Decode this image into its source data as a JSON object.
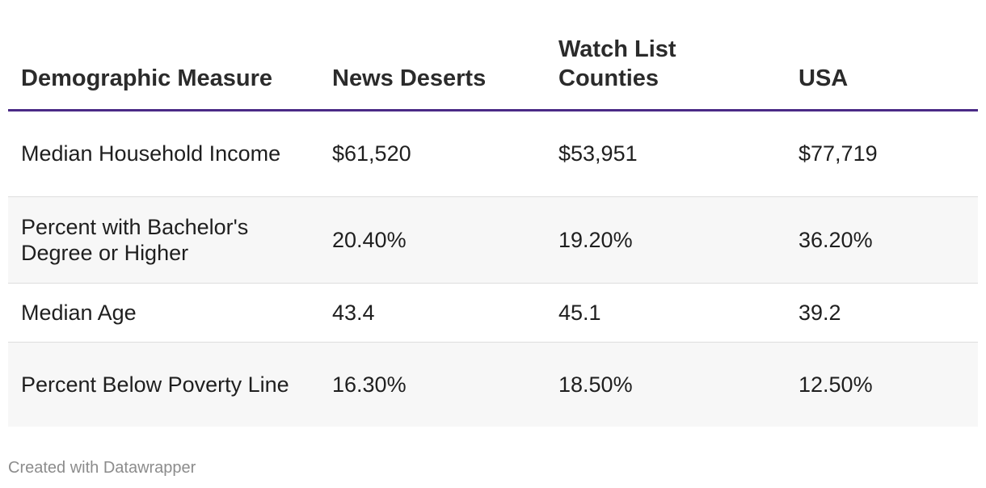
{
  "chart_data": {
    "type": "table",
    "columns": [
      "Demographic Measure",
      "News Deserts",
      "Watch List Counties",
      "USA"
    ],
    "rows": [
      [
        "Median Household Income",
        "$61,520",
        "$53,951",
        "$77,719"
      ],
      [
        "Percent with Bachelor's Degree or Higher",
        "20.40%",
        "19.20%",
        "36.20%"
      ],
      [
        "Median Age",
        "43.4",
        "45.1",
        "39.2"
      ],
      [
        "Percent Below Poverty Line",
        "16.30%",
        "18.50%",
        "12.50%"
      ]
    ],
    "header_rule_color": "#4a2a86",
    "stripe_color": "#f7f7f7"
  },
  "footer": {
    "credit": "Created with Datawrapper"
  }
}
